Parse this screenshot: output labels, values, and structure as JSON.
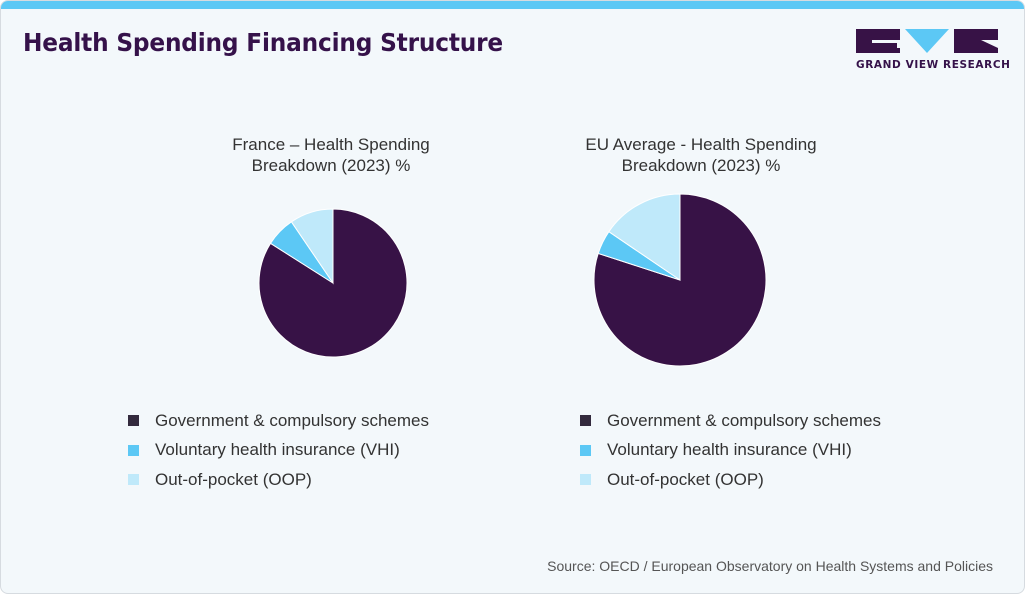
{
  "header": {
    "title": "Health Spending Financing Structure",
    "brand": "GRAND VIEW RESEARCH"
  },
  "colors": {
    "government": "#371246",
    "vhi": "#5cc8f5",
    "oop": "#bfe9fa",
    "accent_bar": "#5cc8f5",
    "title": "#35124a"
  },
  "charts": [
    {
      "title_line1": "France – Health Spending",
      "title_line2": "Breakdown (2023) %",
      "legend": [
        "Government & compulsory schemes",
        "Voluntary health insurance (VHI)",
        "Out-of-pocket (OOP)"
      ]
    },
    {
      "title_line1": "EU Average - Health Spending",
      "title_line2": "Breakdown (2023) %",
      "legend": [
        "Government & compulsory schemes",
        "Voluntary health insurance (VHI)",
        "Out-of-pocket (OOP)"
      ]
    }
  ],
  "source": "Source: OECD / European Observatory on Health Systems and Policies",
  "chart_data": [
    {
      "type": "pie",
      "title": "France – Health Spending Breakdown (2023) %",
      "categories": [
        "Government & compulsory schemes",
        "Voluntary health insurance (VHI)",
        "Out-of-pocket (OOP)"
      ],
      "values": [
        84,
        6.5,
        9.5
      ],
      "colors": [
        "#371246",
        "#5cc8f5",
        "#bfe9fa"
      ],
      "legend_position": "bottom"
    },
    {
      "type": "pie",
      "title": "EU Average - Health Spending Breakdown (2023) %",
      "categories": [
        "Government & compulsory schemes",
        "Voluntary health insurance (VHI)",
        "Out-of-pocket (OOP)"
      ],
      "values": [
        80,
        4.5,
        15.5
      ],
      "colors": [
        "#371246",
        "#5cc8f5",
        "#bfe9fa"
      ],
      "legend_position": "bottom"
    }
  ]
}
